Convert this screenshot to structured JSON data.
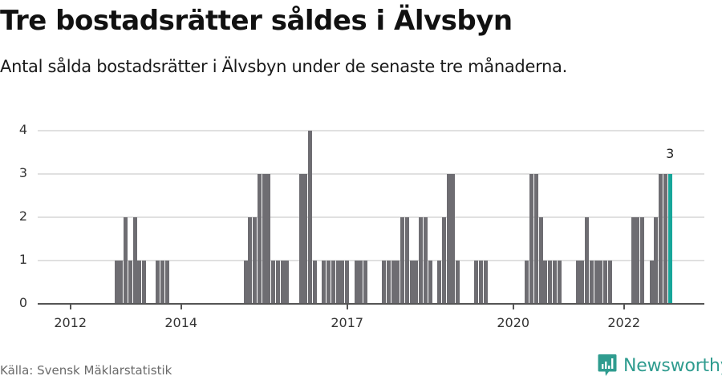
{
  "header": {
    "title": "Tre bostadsrätter såldes i Älvsbyn",
    "subtitle": "Antal sålda bostadsrätter i Älvsbyn under de senaste tre månaderna."
  },
  "footer": {
    "source": "Källa: Svensk Mäklarstatistik",
    "brand": "Newsworthy",
    "brand_icon": "bar-chart-speech-bubble-icon"
  },
  "colors": {
    "bar": "#6e6d72",
    "highlight": "#17a69a",
    "grid": "#e0e0e0",
    "axis": "#555555",
    "brand": "#2f9c8f"
  },
  "chart_data": {
    "type": "bar",
    "title": "Tre bostadsrätter såldes i Älvsbyn",
    "subtitle": "Antal sålda bostadsrätter i Älvsbyn under de senaste tre månaderna.",
    "xlabel": "",
    "ylabel": "",
    "ylim": [
      0,
      4
    ],
    "yticks": [
      0,
      1,
      2,
      3,
      4
    ],
    "xticks": [
      {
        "label": "2012",
        "month_index": 0
      },
      {
        "label": "2014",
        "month_index": 24
      },
      {
        "label": "2017",
        "month_index": 60
      },
      {
        "label": "2020",
        "month_index": 96
      },
      {
        "label": "2022",
        "month_index": 120
      }
    ],
    "grid": true,
    "legend": "none",
    "start_month": "2012-01",
    "categories": [
      "2012-01",
      "2012-02",
      "2012-03",
      "2012-04",
      "2012-05",
      "2012-06",
      "2012-07",
      "2012-08",
      "2012-09",
      "2012-10",
      "2012-11",
      "2012-12",
      "2013-01",
      "2013-02",
      "2013-03",
      "2013-04",
      "2013-05",
      "2013-06",
      "2013-07",
      "2013-08",
      "2013-09",
      "2013-10",
      "2013-11",
      "2013-12",
      "2014-01",
      "2014-02",
      "2014-03",
      "2014-04",
      "2014-05",
      "2014-06",
      "2014-07",
      "2014-08",
      "2014-09",
      "2014-10",
      "2014-11",
      "2014-12",
      "2015-01",
      "2015-02",
      "2015-03",
      "2015-04",
      "2015-05",
      "2015-06",
      "2015-07",
      "2015-08",
      "2015-09",
      "2015-10",
      "2015-11",
      "2015-12",
      "2016-01",
      "2016-02",
      "2016-03",
      "2016-04",
      "2016-05",
      "2016-06",
      "2016-07",
      "2016-08",
      "2016-09",
      "2016-10",
      "2016-11",
      "2016-12",
      "2017-01",
      "2017-02",
      "2017-03",
      "2017-04",
      "2017-05",
      "2017-06",
      "2017-07",
      "2017-08",
      "2017-09",
      "2017-10",
      "2017-11",
      "2017-12",
      "2018-01",
      "2018-02",
      "2018-03",
      "2018-04",
      "2018-05",
      "2018-06",
      "2018-07",
      "2018-08",
      "2018-09",
      "2018-10",
      "2018-11",
      "2018-12",
      "2019-01",
      "2019-02",
      "2019-03",
      "2019-04",
      "2019-05",
      "2019-06",
      "2019-07",
      "2019-08",
      "2019-09",
      "2019-10",
      "2019-11",
      "2019-12",
      "2020-01",
      "2020-02",
      "2020-03",
      "2020-04",
      "2020-05",
      "2020-06",
      "2020-07",
      "2020-08",
      "2020-09",
      "2020-10",
      "2020-11",
      "2020-12",
      "2021-01",
      "2021-02",
      "2021-03",
      "2021-04",
      "2021-05",
      "2021-06",
      "2021-07",
      "2021-08",
      "2021-09",
      "2021-10",
      "2021-11",
      "2021-12",
      "2022-01",
      "2022-02",
      "2022-03",
      "2022-04",
      "2022-05",
      "2022-06",
      "2022-07",
      "2022-08",
      "2022-09",
      "2022-10",
      "2022-11"
    ],
    "values": [
      0,
      0,
      0,
      0,
      0,
      0,
      0,
      0,
      0,
      0,
      1,
      1,
      2,
      1,
      2,
      1,
      1,
      0,
      0,
      1,
      1,
      1,
      0,
      0,
      0,
      0,
      0,
      0,
      0,
      0,
      0,
      0,
      0,
      0,
      0,
      0,
      0,
      0,
      1,
      2,
      2,
      3,
      3,
      3,
      1,
      1,
      1,
      1,
      0,
      0,
      3,
      3,
      4,
      1,
      0,
      1,
      1,
      1,
      1,
      1,
      1,
      0,
      1,
      1,
      1,
      0,
      0,
      0,
      1,
      1,
      1,
      1,
      2,
      2,
      1,
      1,
      2,
      2,
      1,
      0,
      1,
      2,
      3,
      3,
      1,
      0,
      0,
      0,
      1,
      1,
      1,
      0,
      0,
      0,
      0,
      0,
      0,
      0,
      0,
      1,
      3,
      3,
      2,
      1,
      1,
      1,
      1,
      0,
      0,
      0,
      1,
      1,
      2,
      1,
      1,
      1,
      1,
      1,
      0,
      0,
      0,
      0,
      2,
      2,
      2,
      0,
      1,
      2,
      3,
      3,
      3
    ],
    "highlight_index": 130,
    "annotations": [
      {
        "month_index": 130,
        "text": "3"
      }
    ]
  }
}
